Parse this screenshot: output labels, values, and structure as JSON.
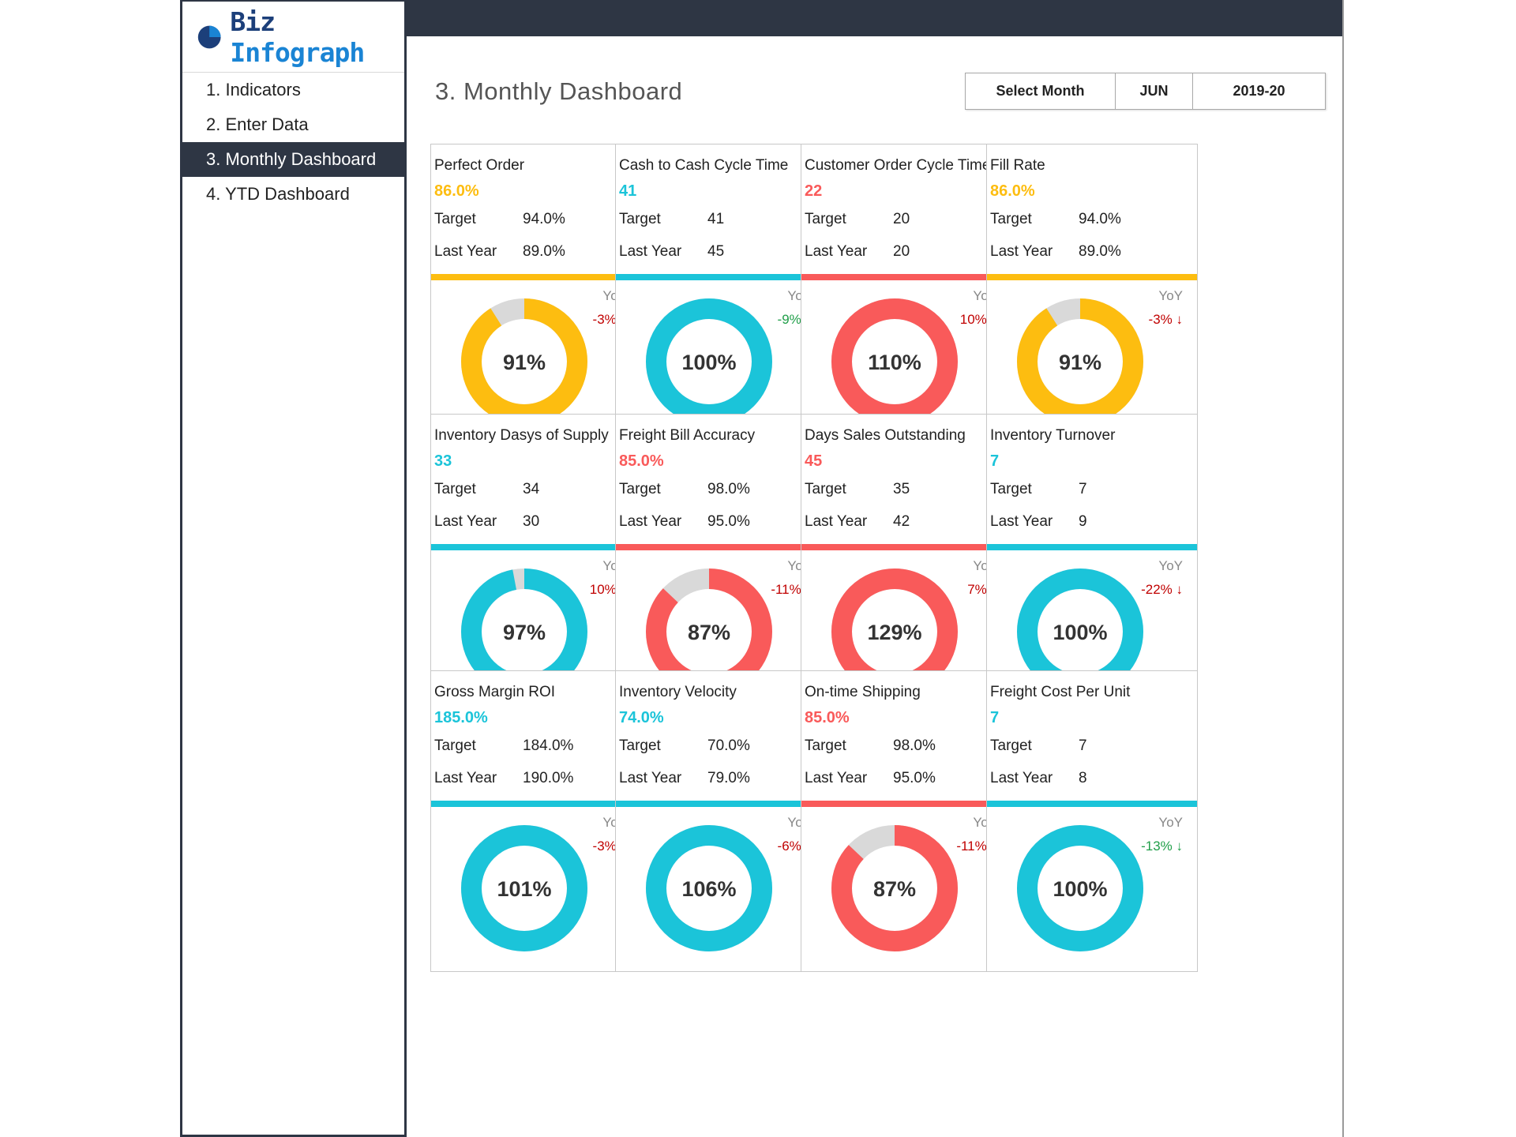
{
  "logo": {
    "biz": "Biz",
    "infograph": "Infograph"
  },
  "nav": [
    {
      "label": "1. Indicators",
      "active": false
    },
    {
      "label": "2. Enter Data",
      "active": false
    },
    {
      "label": "3. Monthly Dashboard",
      "active": true
    },
    {
      "label": "4. YTD Dashboard",
      "active": false
    }
  ],
  "header": {
    "title": "3. Monthly Dashboard",
    "select_label": "Select Month",
    "month": "JUN",
    "year": "2019-20"
  },
  "colors": {
    "yellow": "#fdbd10",
    "cyan": "#1bc4d9",
    "red": "#f95a5a",
    "grey": "#d9d9d9",
    "yoy_red": "#c00000",
    "yoy_green": "#1f9e48",
    "dark": "#2e3644"
  },
  "target_label": "Target",
  "last_year_label": "Last Year",
  "yoy_label": "YoY",
  "cards": [
    {
      "name": "Perfect Order",
      "value": "86.0%",
      "target": "94.0%",
      "last_year": "89.0%",
      "color": "yellow",
      "percent": 91,
      "percent_label": "91%",
      "yoy": "-3%",
      "yoy_dir": "↓",
      "yoy_color": "red"
    },
    {
      "name": "Cash to Cash Cycle Time",
      "value": "41",
      "target": "41",
      "last_year": "45",
      "color": "cyan",
      "percent": 100,
      "percent_label": "100%",
      "yoy": "-9%",
      "yoy_dir": "↓",
      "yoy_color": "green"
    },
    {
      "name": "Customer Order Cycle Time",
      "value": "22",
      "target": "20",
      "last_year": "20",
      "color": "red",
      "percent": 110,
      "percent_label": "110%",
      "yoy": "10%",
      "yoy_dir": "↑",
      "yoy_color": "red"
    },
    {
      "name": "Fill Rate",
      "value": "86.0%",
      "target": "94.0%",
      "last_year": "89.0%",
      "color": "yellow",
      "percent": 91,
      "percent_label": "91%",
      "yoy": "-3%",
      "yoy_dir": "↓",
      "yoy_color": "red"
    },
    {
      "name": "Inventory Dasys of Supply",
      "value": "33",
      "target": "34",
      "last_year": "30",
      "color": "cyan",
      "percent": 97,
      "percent_label": "97%",
      "yoy": "10%",
      "yoy_dir": "↑",
      "yoy_color": "red"
    },
    {
      "name": "Freight Bill Accuracy",
      "value": "85.0%",
      "target": "98.0%",
      "last_year": "95.0%",
      "color": "red",
      "percent": 87,
      "percent_label": "87%",
      "yoy": "-11%",
      "yoy_dir": "↓",
      "yoy_color": "red"
    },
    {
      "name": "Days Sales Outstanding",
      "value": "45",
      "target": "35",
      "last_year": "42",
      "color": "red",
      "percent": 129,
      "percent_label": "129%",
      "yoy": "7%",
      "yoy_dir": "↑",
      "yoy_color": "red"
    },
    {
      "name": "Inventory Turnover",
      "value": "7",
      "target": "7",
      "last_year": "9",
      "color": "cyan",
      "percent": 100,
      "percent_label": "100%",
      "yoy": "-22%",
      "yoy_dir": "↓",
      "yoy_color": "red"
    },
    {
      "name": "Gross Margin ROI",
      "value": "185.0%",
      "target": "184.0%",
      "last_year": "190.0%",
      "color": "cyan",
      "percent": 101,
      "percent_label": "101%",
      "yoy": "-3%",
      "yoy_dir": "↓",
      "yoy_color": "red"
    },
    {
      "name": "Inventory Velocity",
      "value": "74.0%",
      "target": "70.0%",
      "last_year": "79.0%",
      "color": "cyan",
      "percent": 106,
      "percent_label": "106%",
      "yoy": "-6%",
      "yoy_dir": "↓",
      "yoy_color": "red"
    },
    {
      "name": "On-time Shipping",
      "value": "85.0%",
      "target": "98.0%",
      "last_year": "95.0%",
      "color": "red",
      "percent": 87,
      "percent_label": "87%",
      "yoy": "-11%",
      "yoy_dir": "↓",
      "yoy_color": "red"
    },
    {
      "name": "Freight Cost Per Unit",
      "value": "7",
      "target": "7",
      "last_year": "8",
      "color": "cyan",
      "percent": 100,
      "percent_label": "100%",
      "yoy": "-13%",
      "yoy_dir": "↓",
      "yoy_color": "green"
    }
  ]
}
